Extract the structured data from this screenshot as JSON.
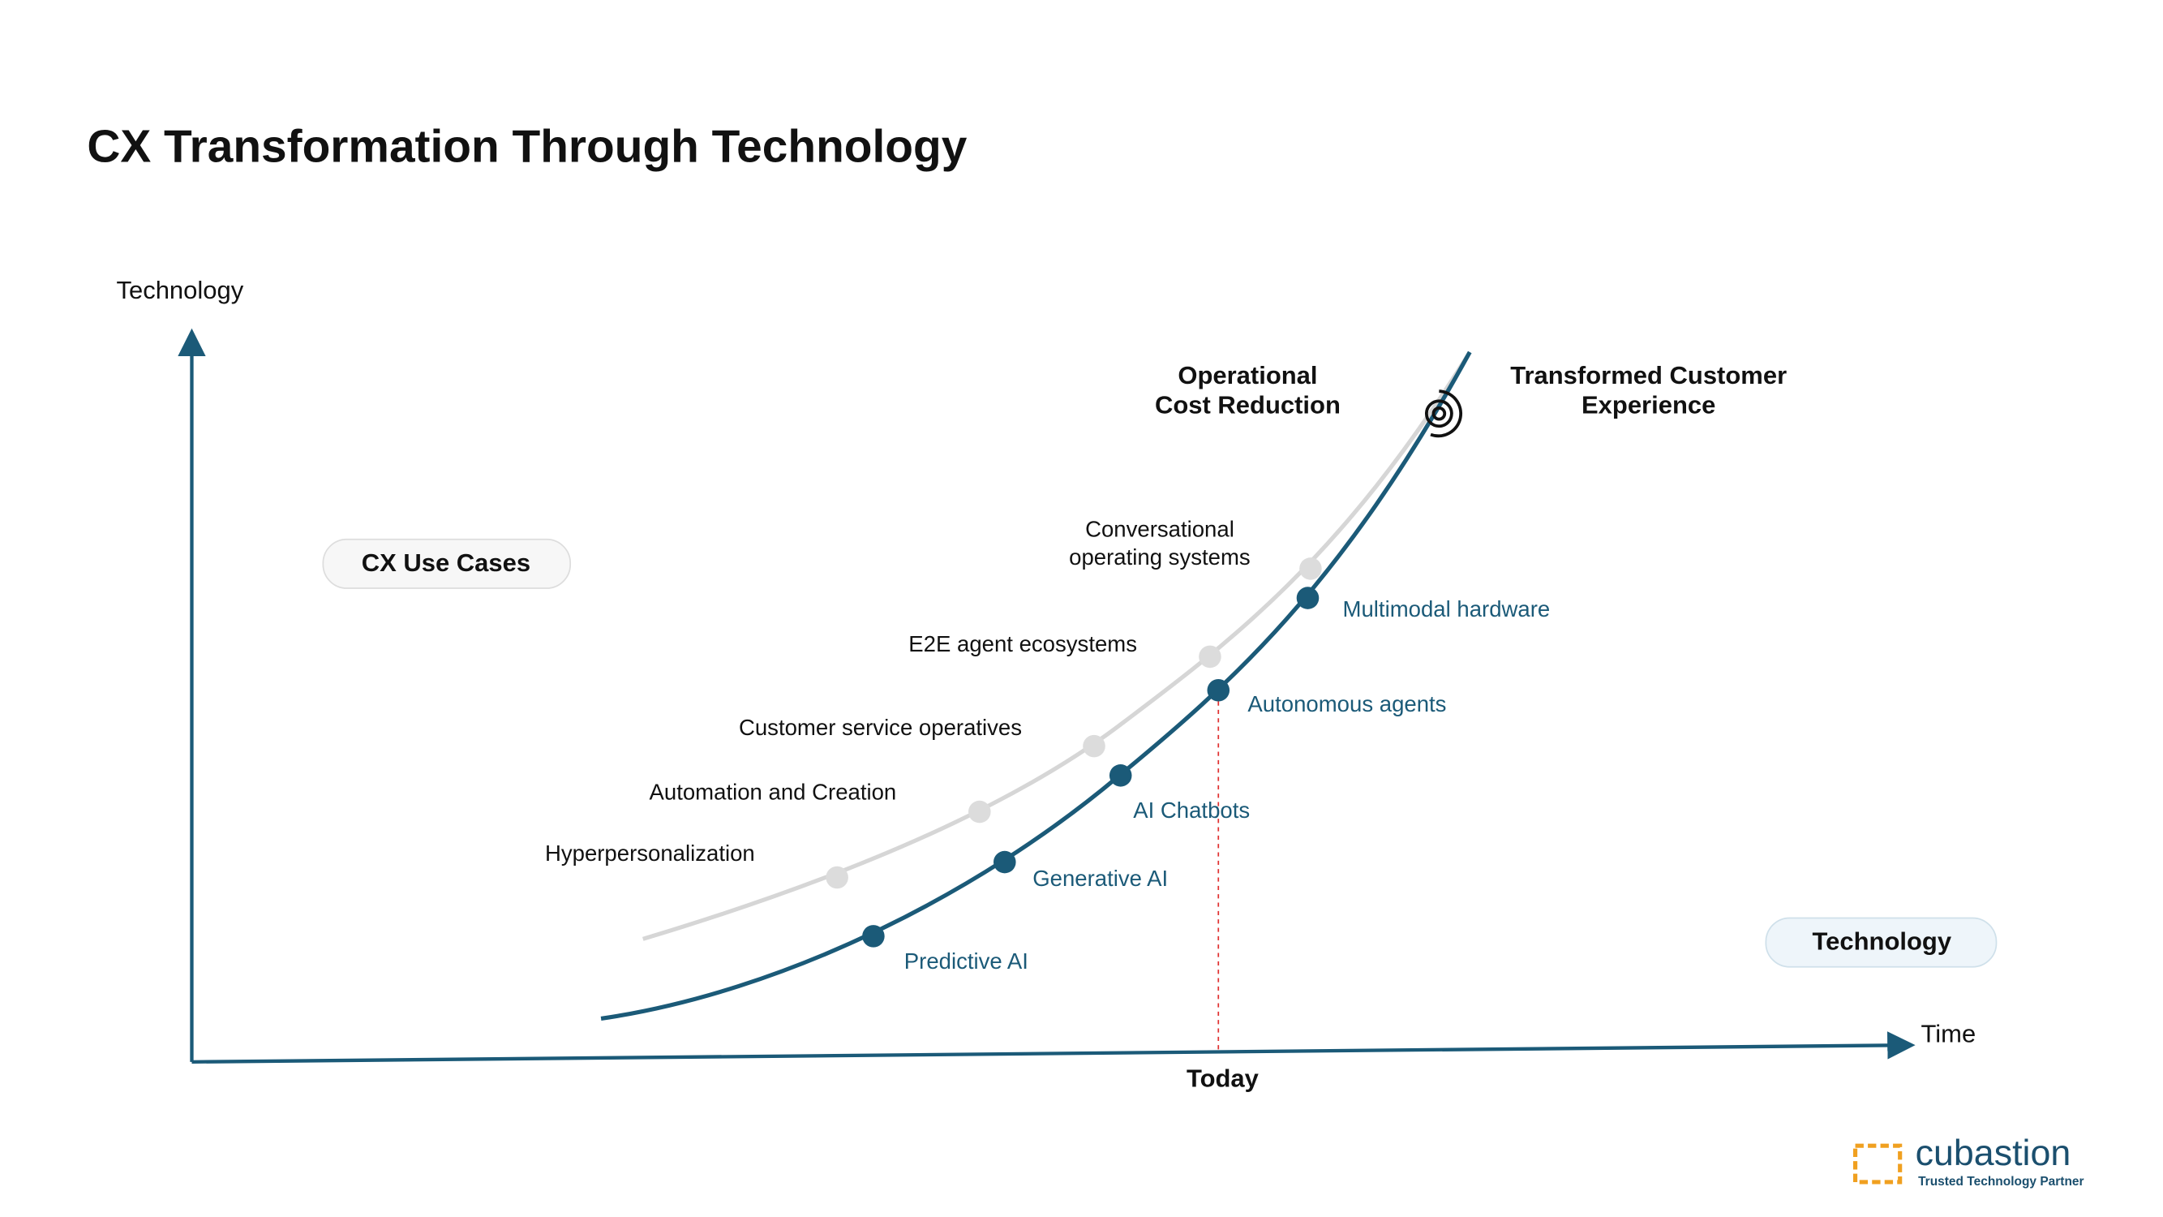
{
  "title": "CX Transformation Through Technology",
  "axes": {
    "y_label": "Technology",
    "x_label": "Time",
    "today": "Today"
  },
  "pills": {
    "use_cases": "CX Use Cases",
    "technology": "Technology"
  },
  "outcomes": {
    "cost": [
      "Operational",
      "Cost Reduction"
    ],
    "experience": [
      "Transformed Customer",
      "Experience"
    ]
  },
  "use_cases": [
    [
      "Hyperpersonalization"
    ],
    [
      "Automation and Creation"
    ],
    [
      "Customer service operatives"
    ],
    [
      "E2E agent ecosystems"
    ],
    [
      "Conversational",
      "operating systems"
    ]
  ],
  "technologies": [
    "Predictive AI",
    "Generative AI",
    "AI Chatbots",
    "Autonomous agents",
    "Multimodal hardware"
  ],
  "logo": {
    "name": "cubastion",
    "tagline": "Trusted Technology Partner"
  }
}
